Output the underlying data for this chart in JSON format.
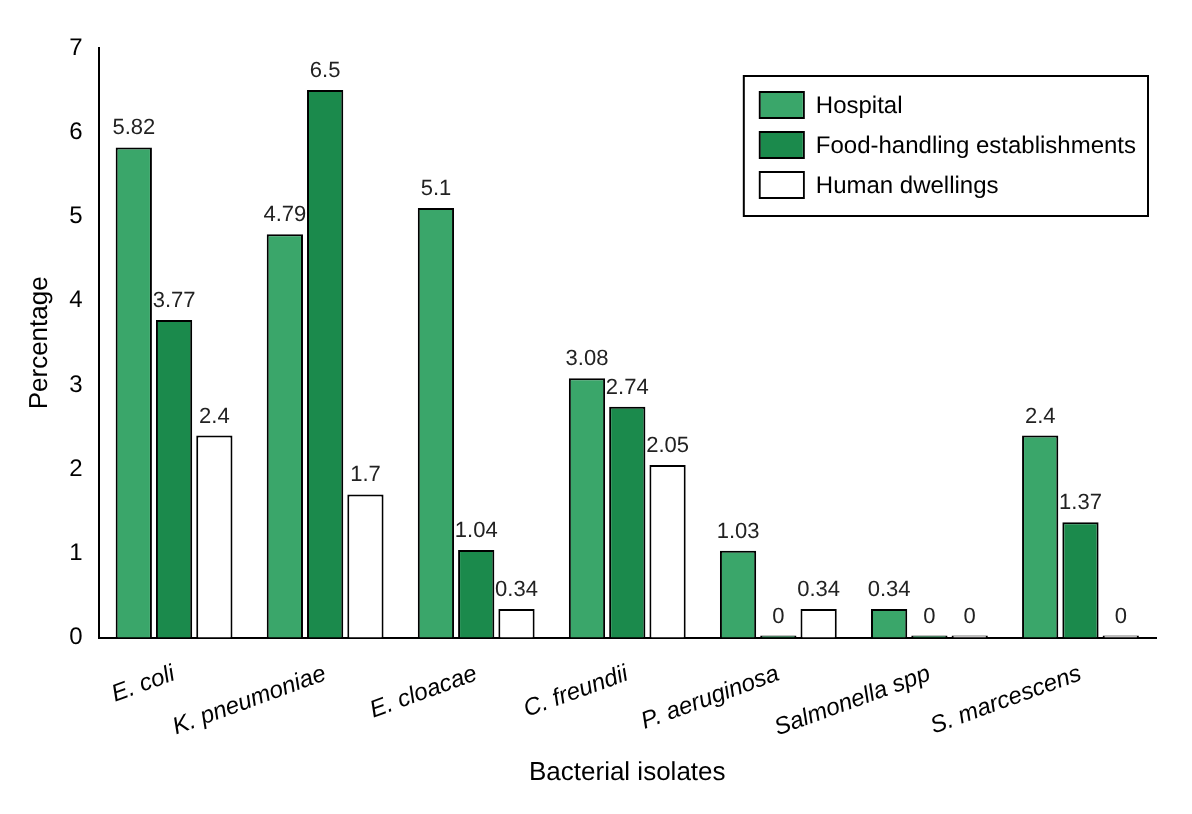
{
  "chart_data": {
    "type": "bar",
    "xlabel": "Bacterial isolates",
    "ylabel": "Percentage",
    "categories": [
      "E. coli",
      "K. pneumoniae",
      "E. cloacae",
      "C. freundii",
      "P. aeruginosa",
      "Salmonella spp",
      "S. marcescens"
    ],
    "series": [
      {
        "name": "Hospital",
        "color": "#3aa66a",
        "values": [
          5.82,
          4.79,
          5.1,
          3.08,
          1.03,
          0.34,
          2.4
        ]
      },
      {
        "name": "Food-handling establishments",
        "color": "#1b8a4c",
        "values": [
          3.77,
          6.5,
          1.04,
          2.74,
          0,
          0,
          1.37
        ]
      },
      {
        "name": "Human dwellings",
        "color": "#ffffff",
        "values": [
          2.4,
          1.7,
          0.34,
          2.05,
          0.34,
          0,
          0
        ]
      }
    ],
    "ylim": [
      0,
      7
    ],
    "yticks": [
      0,
      1,
      2,
      3,
      4,
      5,
      6,
      7
    ],
    "grid": false,
    "legend": "top right",
    "data_labels": true
  }
}
